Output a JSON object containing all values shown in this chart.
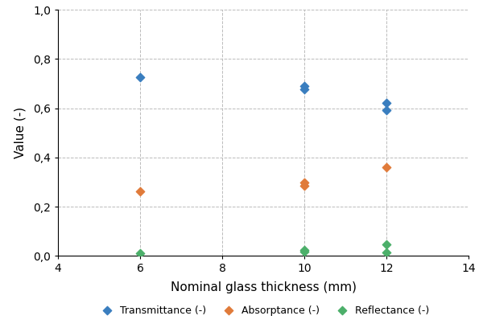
{
  "transmittance": {
    "x": [
      6,
      10,
      10,
      12,
      12
    ],
    "y": [
      0.725,
      0.69,
      0.678,
      0.622,
      0.592
    ]
  },
  "absorptance": {
    "x": [
      6,
      10,
      10,
      12
    ],
    "y": [
      0.262,
      0.297,
      0.285,
      0.36
    ]
  },
  "reflectance": {
    "x": [
      6,
      10,
      10,
      12,
      12
    ],
    "y": [
      0.012,
      0.024,
      0.017,
      0.045,
      0.015
    ]
  },
  "transmittance_color": "#3A7EBF",
  "absorptance_color": "#E07B3A",
  "reflectance_color": "#4CAF6A",
  "xlabel": "Nominal glass thickness (mm)",
  "ylabel": "Value (-)",
  "xlim": [
    4,
    14
  ],
  "ylim": [
    0.0,
    1.0
  ],
  "xticks": [
    4,
    6,
    8,
    10,
    12,
    14
  ],
  "yticks": [
    0.0,
    0.2,
    0.4,
    0.6,
    0.8,
    1.0
  ],
  "legend_labels": [
    "Transmittance (-)",
    "Absorptance (-)",
    "Reflectance (-)"
  ],
  "background_color": "#ffffff",
  "grid_color": "#bbbbbb"
}
